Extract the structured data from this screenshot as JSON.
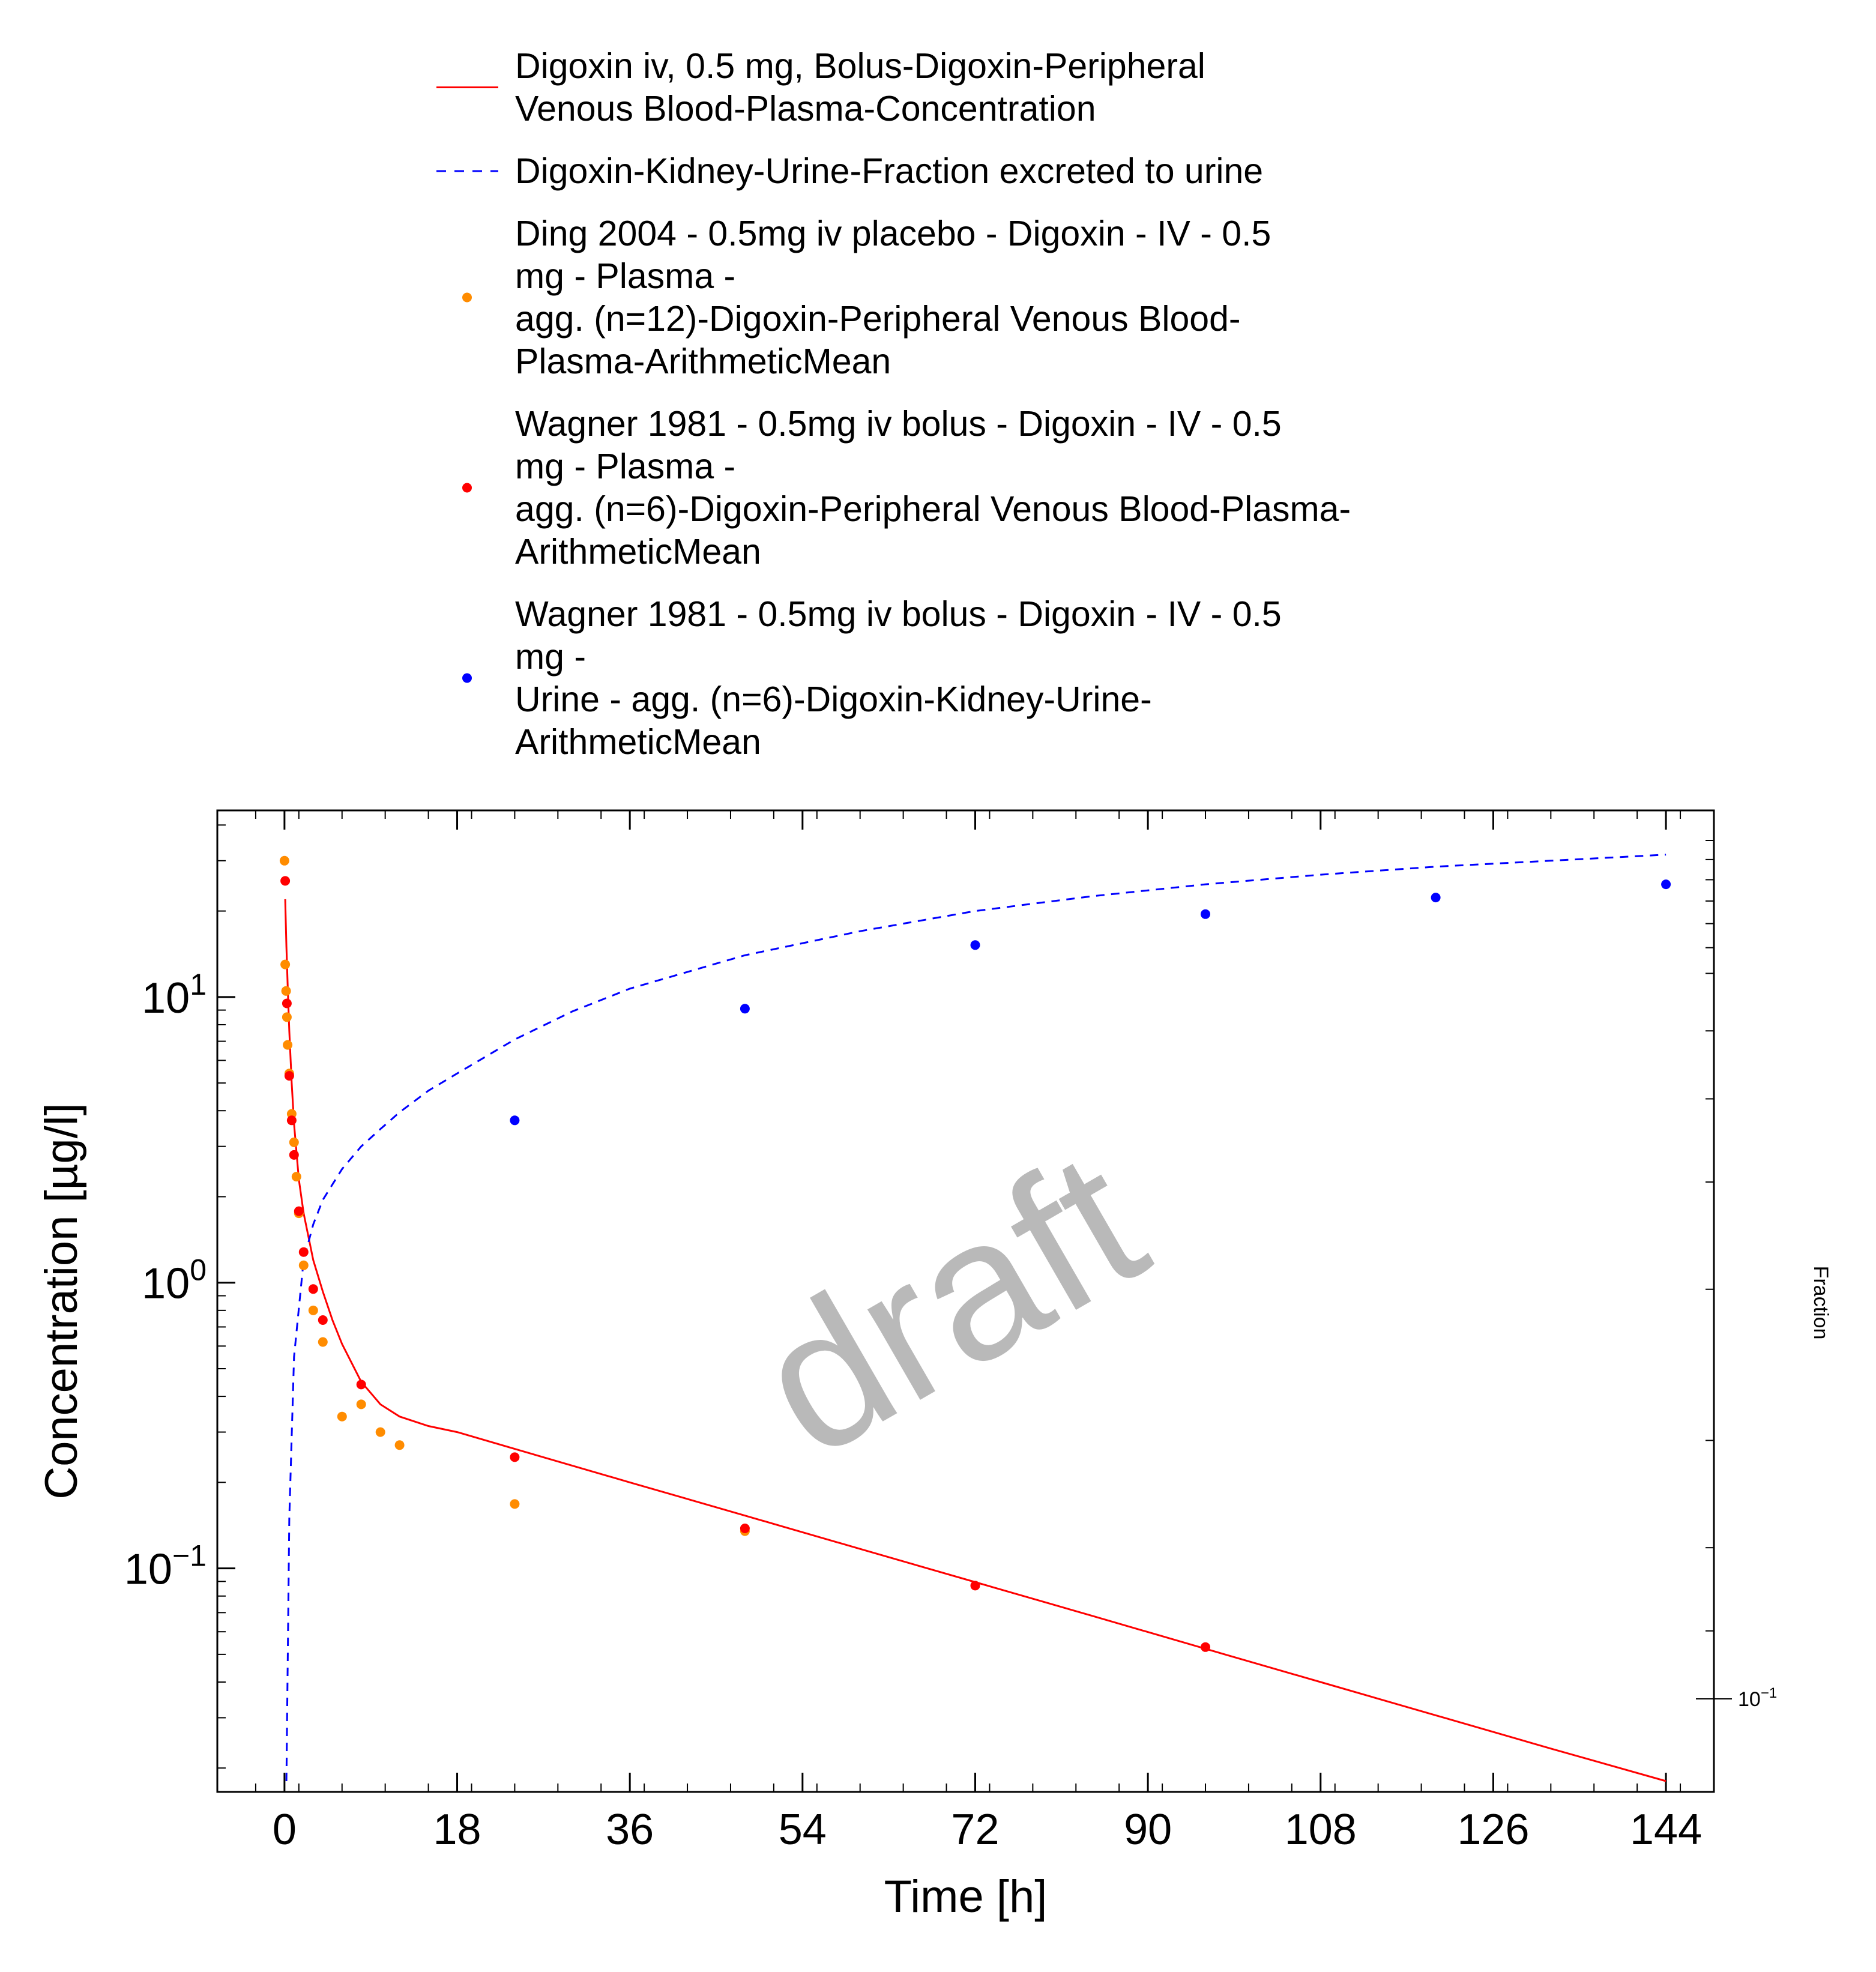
{
  "chart_data": {
    "type": "line",
    "xlabel": "Time [h]",
    "ylabel": "Concentration [µg/l]",
    "y2label": "Fraction",
    "watermark": "draft",
    "xlim": [
      -7,
      149
    ],
    "xticks": [
      0,
      18,
      36,
      54,
      72,
      90,
      108,
      126,
      144
    ],
    "ylog": true,
    "ylim": [
      0.0165,
      45
    ],
    "yticks": [
      {
        "value": 0.1,
        "mantissa": "10",
        "exp": "−1"
      },
      {
        "value": 1,
        "mantissa": "10",
        "exp": "0"
      },
      {
        "value": 10,
        "mantissa": "10",
        "exp": "1"
      }
    ],
    "y2log": true,
    "y2ticks": [
      {
        "value": 0.1,
        "mantissa": "10",
        "exp": "−1"
      }
    ],
    "grid": false,
    "legend_position": "top",
    "legend": [
      {
        "lines": [
          "Digoxin iv, 0.5 mg, Bolus-Digoxin-Peripheral",
          "Venous Blood-Plasma-Concentration"
        ],
        "marker": "line",
        "color": "#ff0000"
      },
      {
        "lines": [
          "Digoxin-Kidney-Urine-Fraction excreted to urine"
        ],
        "marker": "dash",
        "color": "#0000ff"
      },
      {
        "lines": [
          "Ding 2004 - 0.5mg iv placebo - Digoxin - IV - 0.5",
          "mg - Plasma -",
          "agg. (n=12)-Digoxin-Peripheral Venous Blood-",
          "Plasma-ArithmeticMean"
        ],
        "marker": "dot",
        "color": "#ff8c00"
      },
      {
        "lines": [
          "Wagner 1981 - 0.5mg iv bolus - Digoxin - IV - 0.5",
          "mg - Plasma -",
          "agg. (n=6)-Digoxin-Peripheral Venous Blood-Plasma-",
          "ArithmeticMean"
        ],
        "marker": "dot",
        "color": "#ff0000"
      },
      {
        "lines": [
          "Wagner 1981 - 0.5mg iv bolus - Digoxin - IV - 0.5",
          "mg -",
          "Urine - agg. (n=6)-Digoxin-Kidney-Urine-",
          "ArithmeticMean"
        ],
        "marker": "dot",
        "color": "#0000ff"
      }
    ],
    "series": [
      {
        "name": "Digoxin iv, 0.5 mg, Bolus-Digoxin-Peripheral Venous Blood-Plasma-Concentration",
        "kind": "line",
        "axis": "left",
        "color": "#ff0000",
        "x": [
          0.08,
          0.2,
          0.35,
          0.5,
          0.75,
          1,
          1.5,
          2,
          3,
          4,
          5,
          6,
          8,
          10,
          12,
          15,
          18,
          24,
          36,
          48,
          60,
          72,
          84,
          96,
          108,
          120,
          132,
          144
        ],
        "y": [
          22,
          15,
          10.5,
          7.6,
          5.0,
          3.6,
          2.3,
          1.75,
          1.2,
          0.93,
          0.74,
          0.61,
          0.45,
          0.375,
          0.34,
          0.315,
          0.3,
          0.262,
          0.2,
          0.153,
          0.117,
          0.0895,
          0.0685,
          0.0523,
          0.04,
          0.0306,
          0.0234,
          0.018
        ]
      },
      {
        "name": "Digoxin-Kidney-Urine-Fraction excreted to urine",
        "kind": "dashed",
        "axis": "left",
        "color": "#0000ff",
        "x": [
          0.2,
          0.5,
          1,
          2,
          3,
          4,
          6,
          8,
          10,
          12,
          15,
          18,
          24,
          30,
          36,
          48,
          60,
          72,
          84,
          96,
          108,
          120,
          132,
          144
        ],
        "y": [
          0.018,
          0.15,
          0.55,
          1.2,
          1.6,
          1.95,
          2.5,
          3.0,
          3.45,
          3.95,
          4.7,
          5.4,
          7.1,
          8.9,
          10.7,
          14.0,
          17.0,
          20.0,
          22.5,
          24.8,
          26.8,
          28.6,
          30.0,
          31.5
        ]
      },
      {
        "name": "Ding 2004 - 0.5mg iv placebo - Digoxin - IV - 0.5 mg - Plasma - agg. (n=12)-Digoxin-Peripheral Venous Blood-Plasma-ArithmeticMean",
        "kind": "points",
        "axis": "left",
        "color": "#ff8c00",
        "x": [
          0,
          0.08,
          0.17,
          0.25,
          0.33,
          0.5,
          0.75,
          1,
          1.25,
          1.5,
          2,
          3,
          4,
          6,
          8,
          10,
          12,
          24,
          48
        ],
        "y": [
          30,
          13,
          10.5,
          8.5,
          6.8,
          5.4,
          3.9,
          3.1,
          2.35,
          1.75,
          1.15,
          0.8,
          0.62,
          0.34,
          0.375,
          0.3,
          0.27,
          0.168,
          0.135
        ]
      },
      {
        "name": "Wagner 1981 - 0.5mg iv bolus - Digoxin - IV - 0.5 mg - Plasma - agg. (n=6)-Digoxin-Peripheral Venous Blood-Plasma-ArithmeticMean",
        "kind": "points",
        "axis": "left",
        "color": "#ff0000",
        "x": [
          0.08,
          0.25,
          0.5,
          0.75,
          1,
          1.5,
          2,
          3,
          4,
          8,
          24,
          48,
          72,
          96
        ],
        "y": [
          25.5,
          9.5,
          5.3,
          3.7,
          2.8,
          1.78,
          1.28,
          0.95,
          0.74,
          0.44,
          0.245,
          0.138,
          0.087,
          0.053
        ]
      },
      {
        "name": "Wagner 1981 - 0.5mg iv bolus - Digoxin - IV - 0.5 mg - Urine - agg. (n=6)-Digoxin-Kidney-Urine-ArithmeticMean",
        "kind": "points",
        "axis": "left",
        "color": "#0000ff",
        "x": [
          24,
          48,
          72,
          96,
          120,
          144
        ],
        "y": [
          3.7,
          9.1,
          15.2,
          19.5,
          22.3,
          24.8
        ]
      }
    ]
  }
}
